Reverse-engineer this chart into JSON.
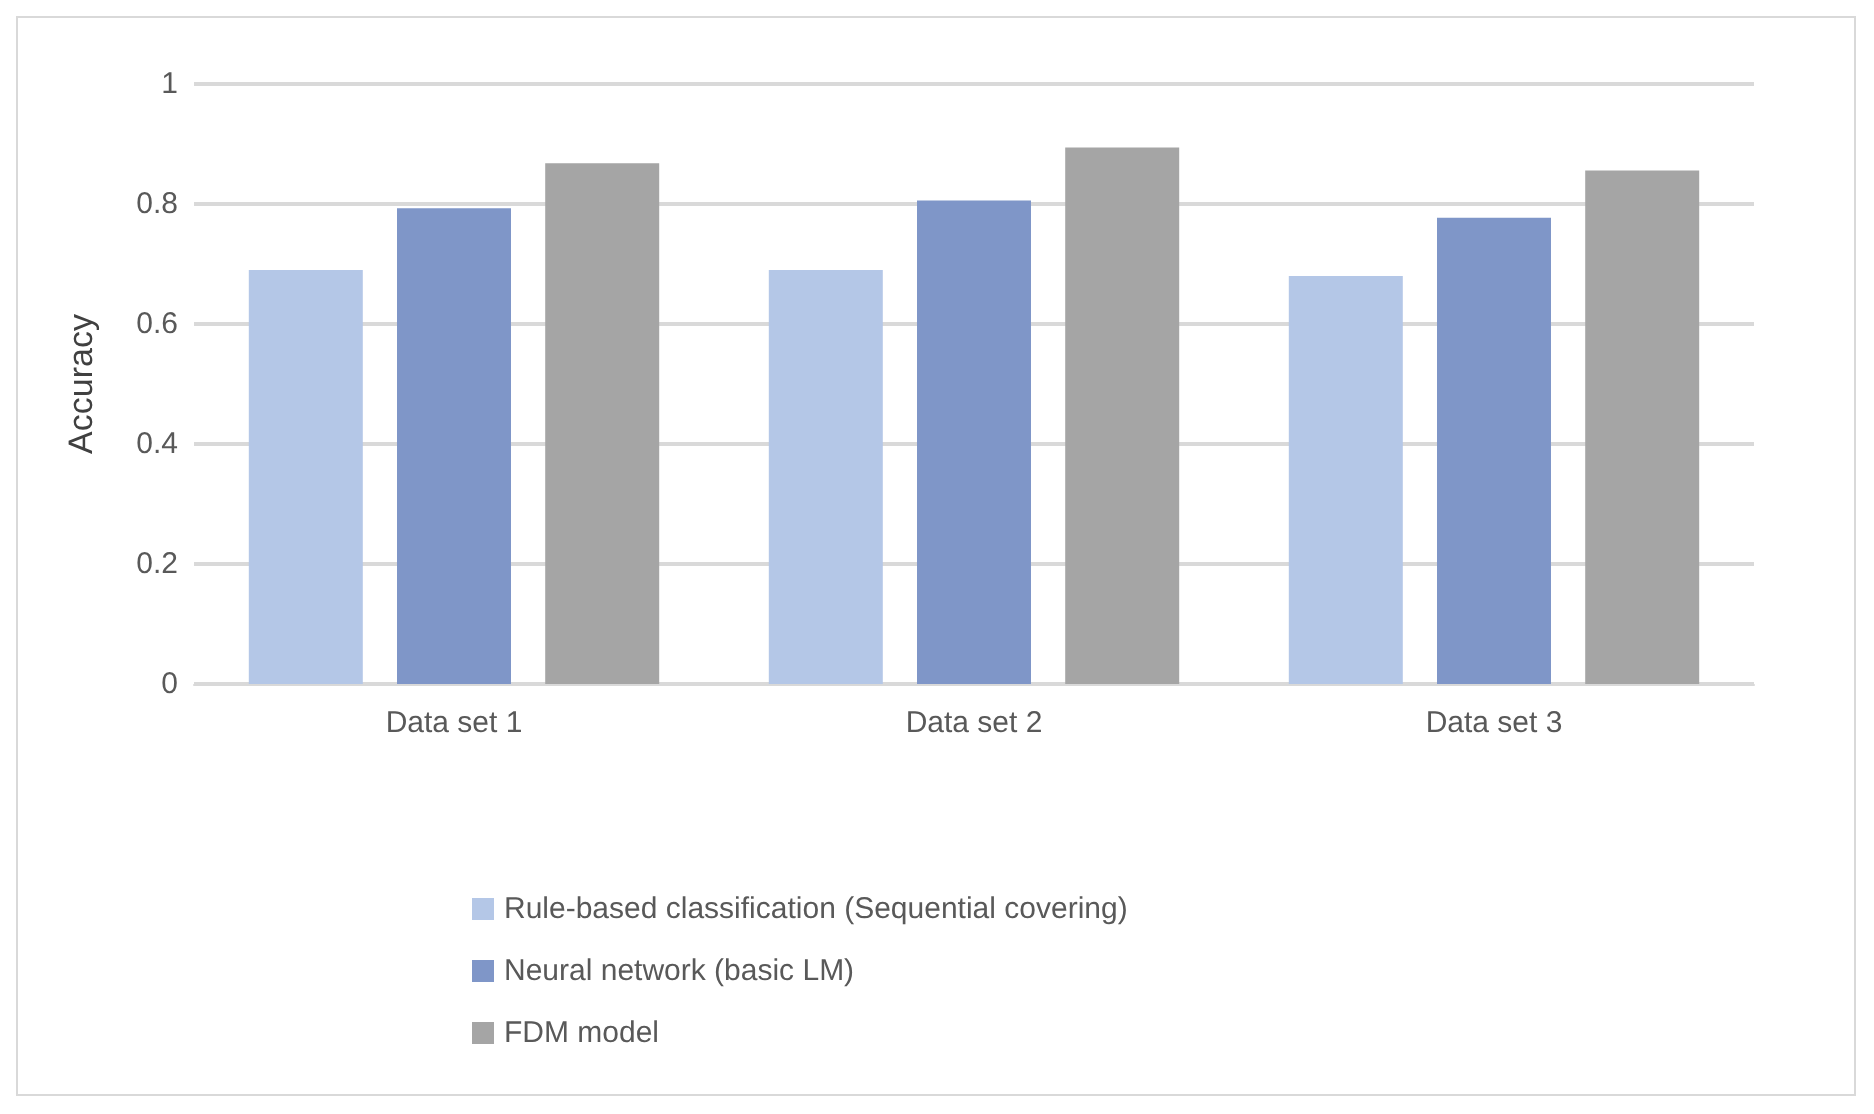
{
  "chart_data": {
    "type": "bar",
    "ylabel": "Accuracy",
    "categories": [
      "Data set 1",
      "Data set 2",
      "Data set 3"
    ],
    "series": [
      {
        "name": "Rule-based classification (Sequential covering)",
        "color": "#b4c7e7",
        "values": [
          0.69,
          0.69,
          0.68
        ]
      },
      {
        "name": "Neural network (basic LM)",
        "color": "#7f96c8",
        "values": [
          0.793,
          0.806,
          0.777
        ]
      },
      {
        "name": "FDM model",
        "color": "#a5a5a5",
        "values": [
          0.868,
          0.894,
          0.856
        ]
      }
    ],
    "ylim": [
      0,
      1
    ],
    "yticks": [
      0,
      0.2,
      0.4,
      0.6,
      0.8,
      1
    ],
    "grid": "y",
    "legend": "bottom"
  }
}
